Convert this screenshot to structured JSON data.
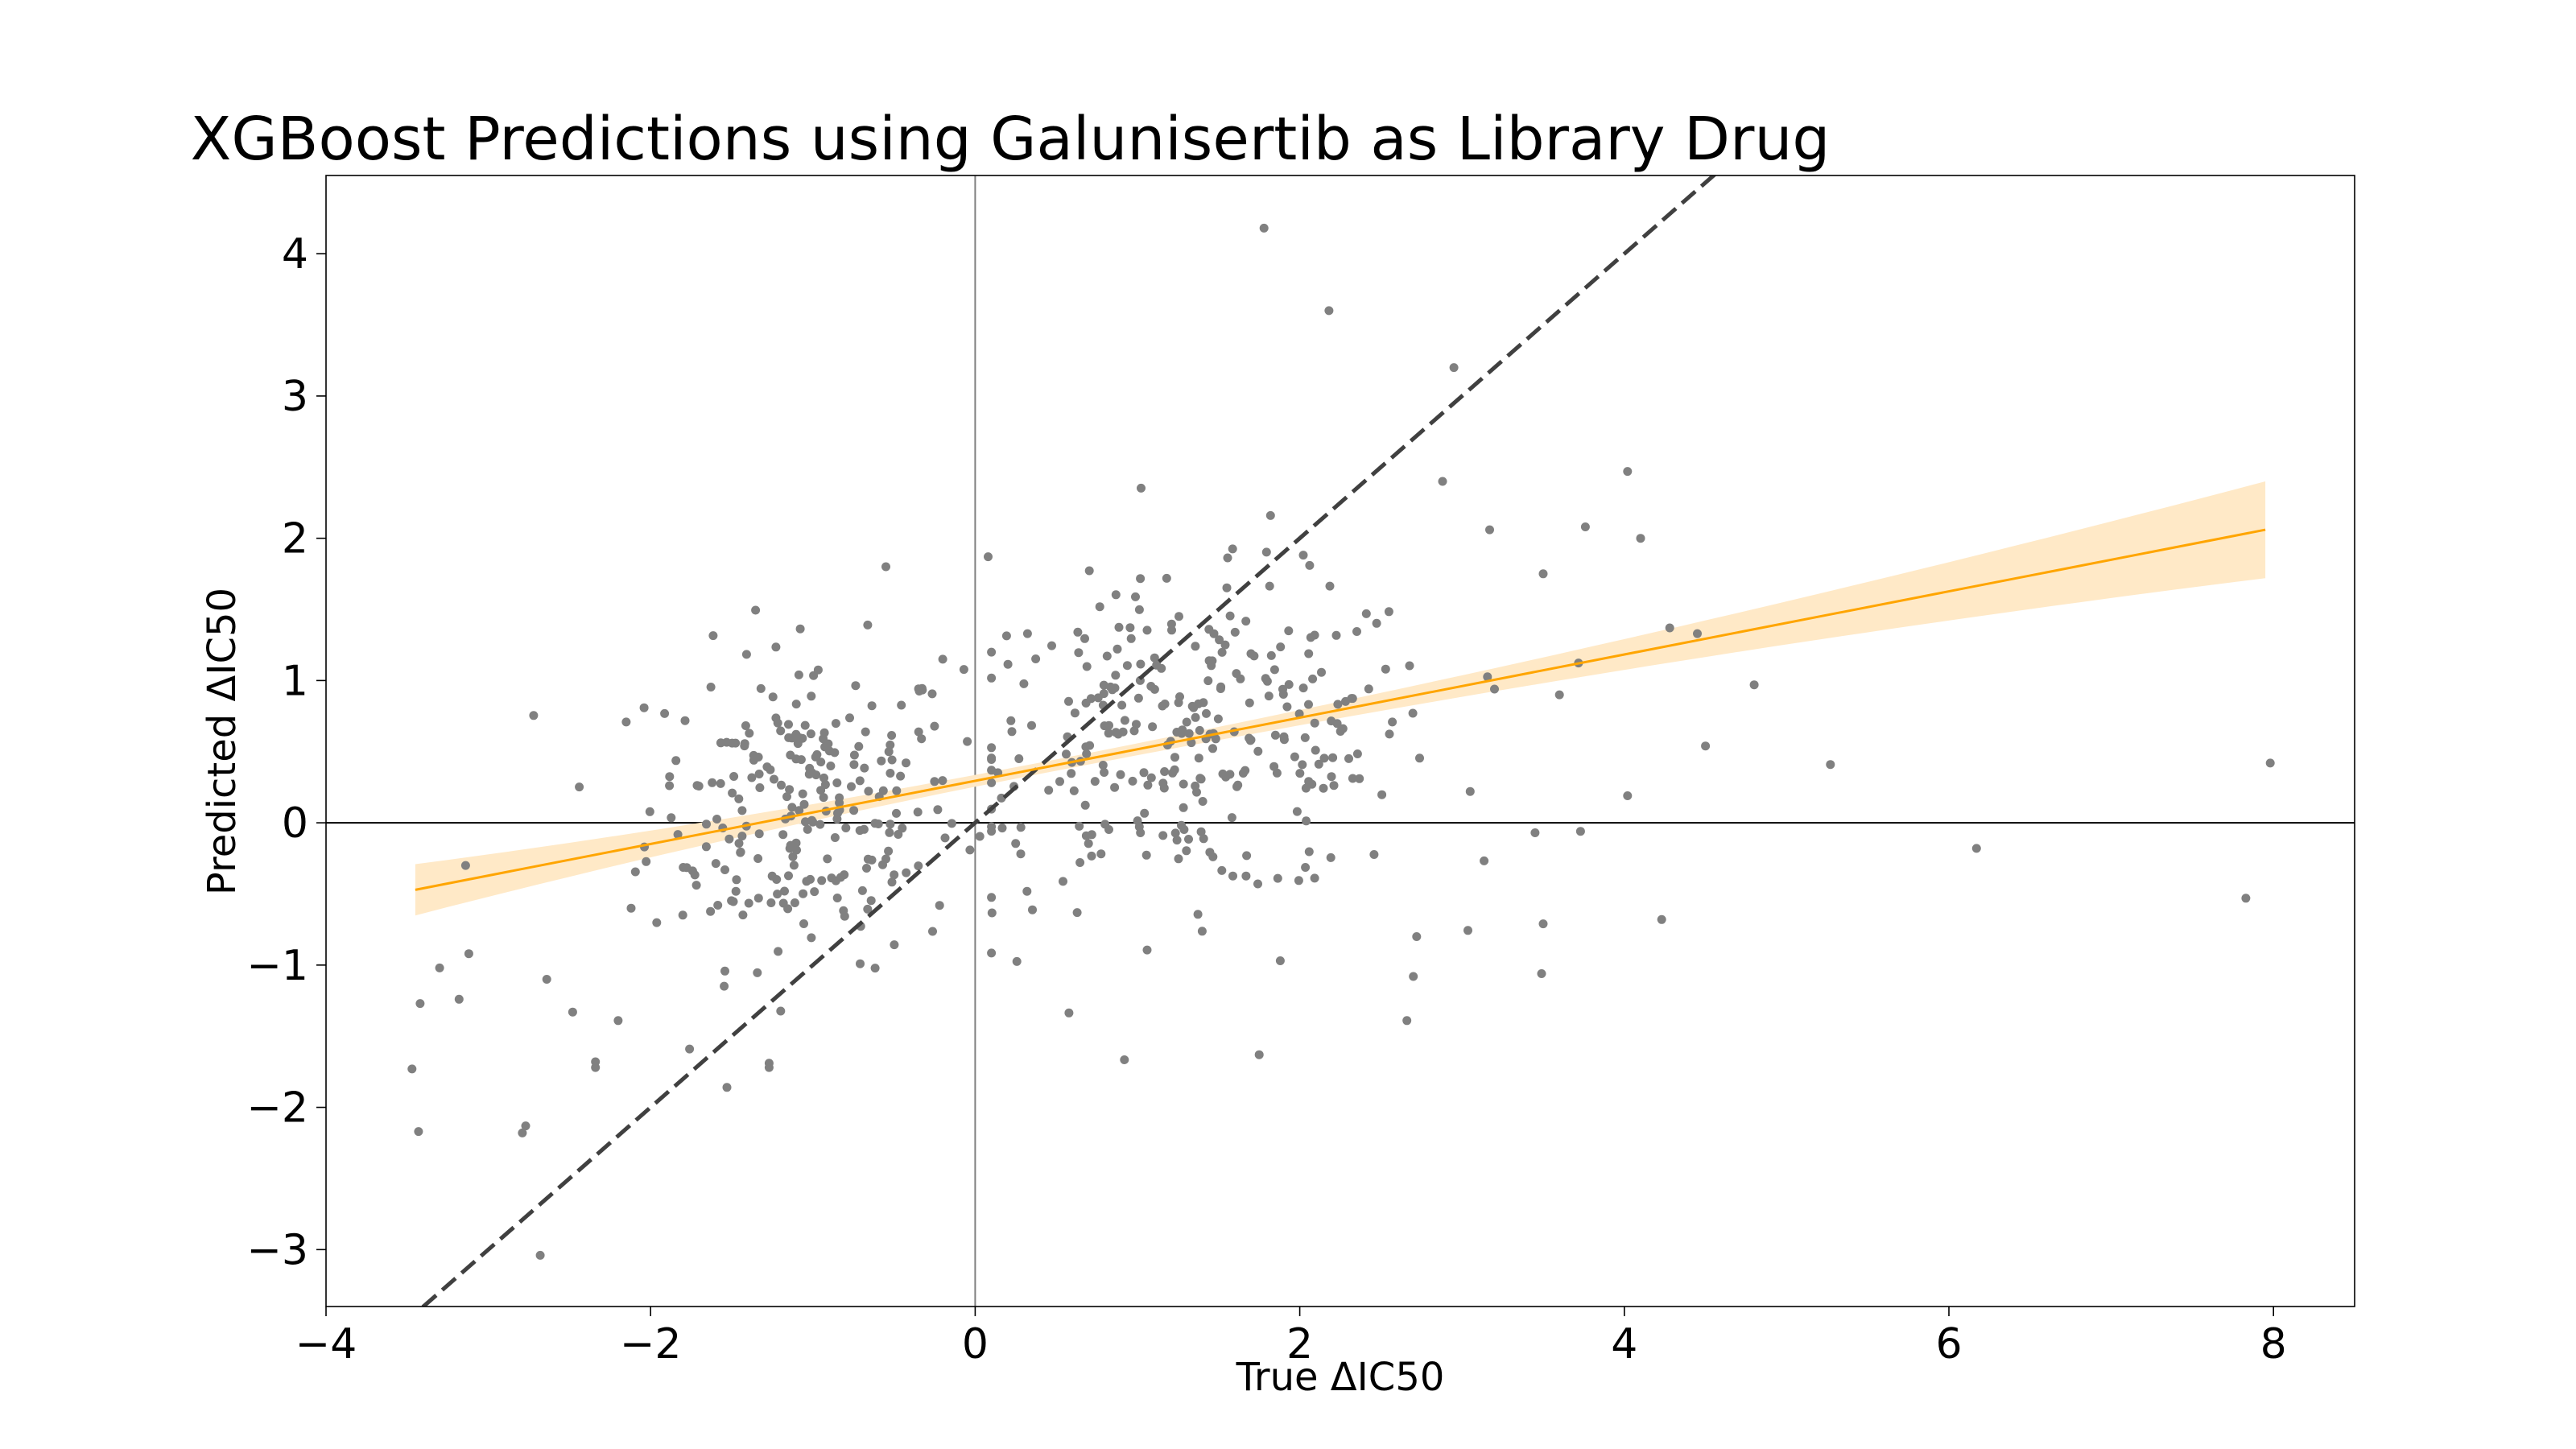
{
  "chart_data": {
    "type": "scatter",
    "title": "XGBoost Predictions using Galunisertib as Library Drug",
    "xlabel": "True ΔIC50",
    "ylabel": "Predicted ΔIC50",
    "xlim": [
      -4,
      8.5
    ],
    "ylim": [
      -3.4,
      4.55
    ],
    "xticks": [
      -4,
      -2,
      0,
      2,
      4,
      6,
      8
    ],
    "yticks": [
      -3,
      -2,
      -1,
      0,
      1,
      2,
      3,
      4
    ],
    "xtick_labels": [
      "−4",
      "−2",
      "0",
      "2",
      "4",
      "6",
      "8"
    ],
    "ytick_labels": [
      "−3",
      "−2",
      "−1",
      "0",
      "1",
      "2",
      "3",
      "4"
    ],
    "grid": false,
    "reference_lines": {
      "x0": true,
      "y0": true,
      "identity_dashed": true
    },
    "regression": {
      "slope": 0.222,
      "intercept": 0.295,
      "x_range": [
        -3.45,
        7.95
      ],
      "ci_halfwidth_left": 0.18,
      "ci_halfwidth_right": 0.34,
      "ci_halfwidth_center": 0.04,
      "ci_center_x": 0.4
    },
    "colors": {
      "points": "#808080",
      "regression": "#ffa500",
      "ci_band": "#ffe9c7",
      "identity": "#404040",
      "zero_lines": "#000000"
    },
    "points_outliers": [
      [
        1.78,
        4.18
      ],
      [
        2.18,
        3.6
      ],
      [
        2.95,
        3.2
      ],
      [
        2.88,
        2.4
      ],
      [
        4.02,
        2.47
      ],
      [
        1.82,
        2.16
      ],
      [
        4.1,
        2.0
      ],
      [
        3.17,
        2.06
      ],
      [
        3.76,
        2.08
      ],
      [
        3.5,
        1.75
      ],
      [
        4.45,
        1.33
      ],
      [
        4.8,
        0.97
      ],
      [
        5.27,
        0.41
      ],
      [
        6.17,
        -0.18
      ],
      [
        7.83,
        -0.53
      ],
      [
        7.98,
        0.42
      ],
      [
        4.23,
        -0.68
      ],
      [
        3.5,
        -0.71
      ],
      [
        3.49,
        -1.06
      ],
      [
        4.02,
        0.19
      ],
      [
        3.73,
        -0.06
      ],
      [
        3.45,
        -0.07
      ],
      [
        1.75,
        -1.63
      ],
      [
        2.66,
        -1.39
      ],
      [
        1.88,
        -0.97
      ],
      [
        2.7,
        -1.08
      ],
      [
        2.72,
        -0.8
      ],
      [
        -3.43,
        -2.17
      ],
      [
        -3.47,
        -1.73
      ],
      [
        -3.42,
        -1.27
      ],
      [
        -3.3,
        -1.02
      ],
      [
        -3.18,
        -1.24
      ],
      [
        -3.12,
        -0.92
      ],
      [
        -2.77,
        -2.13
      ],
      [
        -2.79,
        -2.18
      ],
      [
        -2.68,
        -3.04
      ],
      [
        -2.34,
        -1.68
      ],
      [
        -2.34,
        -1.72
      ],
      [
        -2.48,
        -1.33
      ],
      [
        -2.64,
        -1.1
      ],
      [
        -2.2,
        -1.39
      ],
      [
        -1.76,
        -1.59
      ],
      [
        -1.53,
        -1.86
      ],
      [
        -1.27,
        -1.69
      ],
      [
        -1.27,
        -1.72
      ],
      [
        -0.55,
        1.8
      ],
      [
        0.08,
        1.87
      ],
      [
        -0.2,
        1.15
      ],
      [
        4.28,
        1.37
      ],
      [
        3.6,
        0.9
      ],
      [
        3.2,
        0.94
      ],
      [
        3.05,
        0.22
      ],
      [
        4.5,
        0.54
      ],
      [
        -3.14,
        -0.3
      ],
      [
        -2.12,
        -0.6
      ]
    ],
    "points_cluster_summary": {
      "left_cluster_center": [
        -1.05,
        0.15
      ],
      "right_cluster_center": [
        1.3,
        0.5
      ],
      "n_points_approx": 600
    }
  }
}
